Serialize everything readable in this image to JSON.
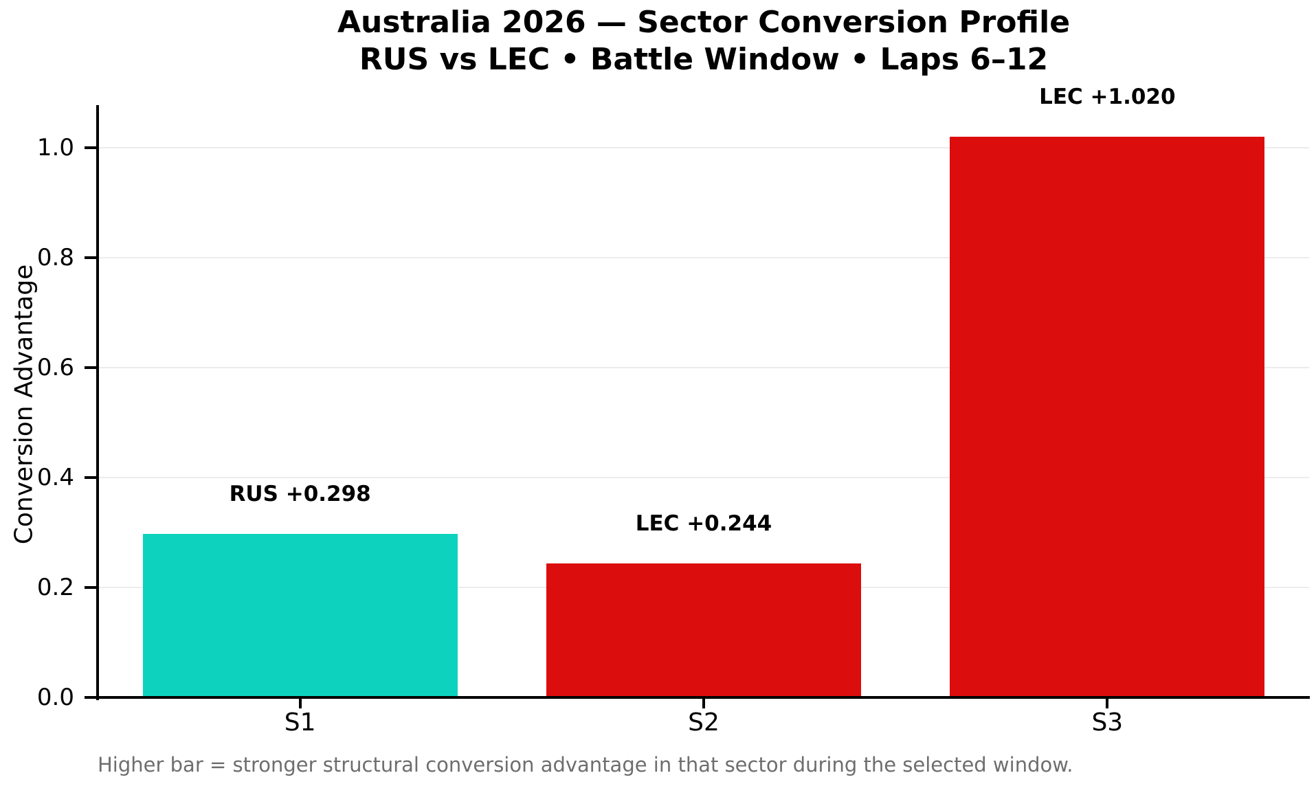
{
  "chart_data": {
    "type": "bar",
    "title_line1": "Australia 2026 — Sector Conversion Profile",
    "title_line2": "RUS vs LEC • Battle Window • Laps 6–12",
    "ylabel": "Conversion Advantage",
    "xlabel": "",
    "categories": [
      "S1",
      "S2",
      "S3"
    ],
    "values": [
      0.298,
      0.244,
      1.02
    ],
    "bar_labels": [
      "RUS +0.298",
      "LEC +0.244",
      "LEC +1.020"
    ],
    "bar_colors": [
      "#0dd3be",
      "#dc0d0d",
      "#dc0d0d"
    ],
    "ytick_values": [
      0.0,
      0.2,
      0.4,
      0.6,
      0.8,
      1.0
    ],
    "ytick_labels": [
      "0.0",
      "0.2",
      "0.4",
      "0.6",
      "0.8",
      "1.0"
    ],
    "ylim": [
      0,
      1.074
    ],
    "grid": "horizontal-light",
    "legend_position": "none",
    "footnote": "Higher bar = stronger structural conversion advantage in that sector during the selected window.",
    "colors": {
      "teal": "#0dd3be",
      "red": "#dc0d0d",
      "grid": "#ececec",
      "axis": "#000000",
      "footnote_gray": "#6e6e6e",
      "background": "#ffffff"
    }
  }
}
